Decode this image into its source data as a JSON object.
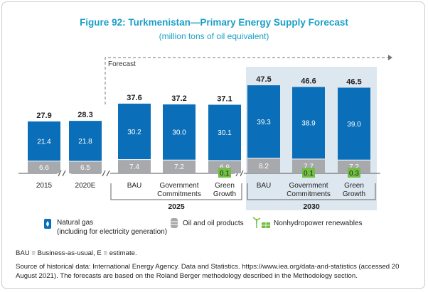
{
  "figure_title": "Figure 92: Turkmenistan—Primary Energy Supply Forecast",
  "figure_subtitle": "(million tons of oil equivalent)",
  "forecast_label": "Forecast",
  "colors": {
    "gas": "#0a6fb8",
    "oil": "#a7a9ac",
    "renew": "#72bf44",
    "panel": "#dde7f0",
    "axis": "#555555",
    "title": "#1a9fc8"
  },
  "chart_data": {
    "type": "bar",
    "stacked": true,
    "ylim": [
      0,
      48
    ],
    "categories": [
      {
        "label": "2015",
        "group": "",
        "total": "27.9"
      },
      {
        "label": "2020E",
        "group": "",
        "total": "28.3"
      },
      {
        "label": "BAU",
        "group": "2025",
        "total": "37.6"
      },
      {
        "label": "Government\nCommitments",
        "group": "2025",
        "total": "37.2"
      },
      {
        "label": "Green\nGrowth",
        "group": "2025",
        "total": "37.1"
      },
      {
        "label": "BAU",
        "group": "2030",
        "total": "47.5"
      },
      {
        "label": "Government\nCommitments",
        "group": "2030",
        "total": "46.6"
      },
      {
        "label": "Green\nGrowth",
        "group": "2030",
        "total": "46.5"
      }
    ],
    "series": [
      {
        "key": "oil",
        "name": "Oil and oil products",
        "values": [
          6.6,
          6.5,
          7.4,
          7.2,
          6.9,
          8.2,
          7.7,
          7.2
        ]
      },
      {
        "key": "gas",
        "name": "Natural gas (including for electricity generation)",
        "values": [
          21.4,
          21.8,
          30.2,
          30.0,
          30.1,
          39.3,
          38.9,
          39.0
        ]
      },
      {
        "key": "renew",
        "name": "Nonhydropower renewables",
        "values": [
          null,
          null,
          null,
          null,
          0.1,
          null,
          0.1,
          0.3
        ]
      }
    ],
    "value_labels": {
      "oil": [
        "6.6",
        "6.5",
        "7.4",
        "7.2",
        "6.9",
        "8.2",
        "7.7",
        "7.2"
      ],
      "gas": [
        "21.4",
        "21.8",
        "30.2",
        "30.0",
        "30.1",
        "39.3",
        "38.9",
        "39.0"
      ],
      "renew": [
        "",
        "",
        "",
        "",
        "0.1",
        "",
        "0.1",
        "0.3"
      ]
    },
    "groups": [
      "2025",
      "2030"
    ]
  },
  "legend": {
    "gas_line1": "Natural gas",
    "gas_line2": "(including for electricity generation)",
    "oil": "Oil and oil products",
    "renew": "Nonhydropower renewables"
  },
  "notes": {
    "abbrev": "BAU = Business-as-usual, E = estimate.",
    "source": "Source of historical data: International Energy Agency. Data and Statistics. https://www.iea.org/data-and-statistics (accessed 20 August 2021). The forecasts are based on the Roland Berger methodology described in the Methodology section."
  }
}
